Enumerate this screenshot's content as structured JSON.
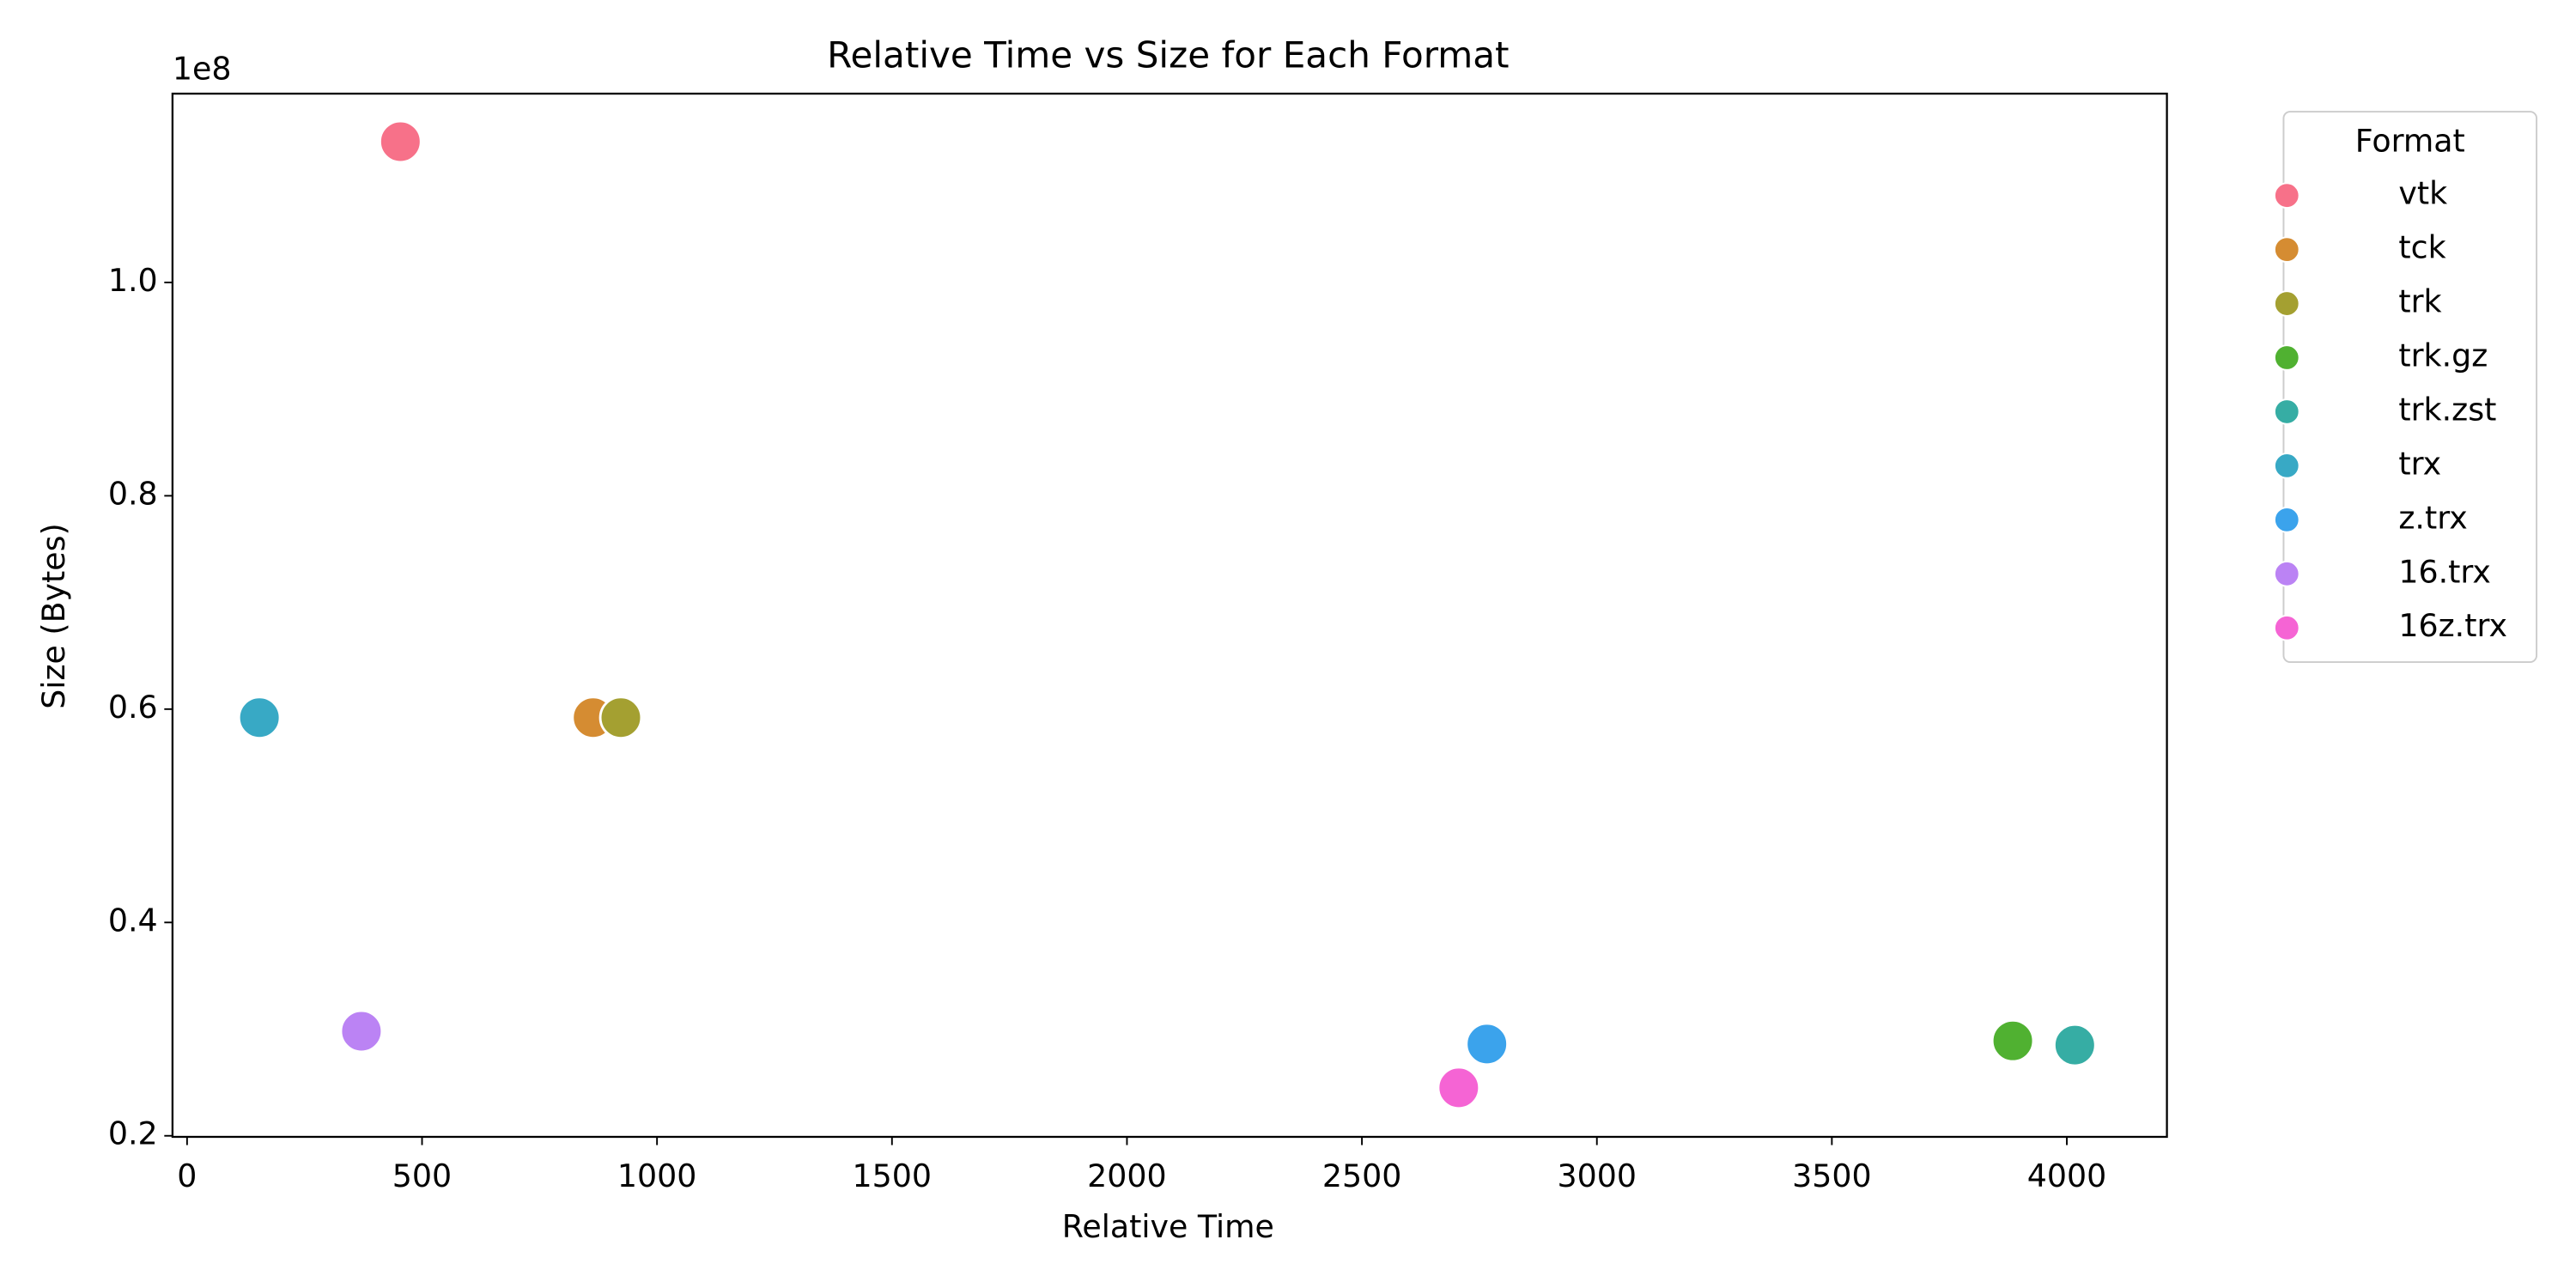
{
  "chart_data": {
    "type": "scatter",
    "title": "Relative Time vs Size for Each Format",
    "x_label": "Relative Time",
    "y_label": "Size (Bytes)",
    "y_offset_label": "1e8",
    "legend_title": "Format",
    "legend": "outside-upper-right",
    "grid": false,
    "xlim": [
      -31,
      4213
    ],
    "xticks": [
      0,
      500,
      1000,
      1500,
      2000,
      2500,
      3000,
      3500,
      4000
    ],
    "ylim": [
      0.199,
      1.177
    ],
    "yticks": [
      0.2,
      0.4,
      0.6,
      {
        "value": 1,
        "label": "1.0"
      },
      0.8
    ],
    "series": [
      {
        "name": "vtk",
        "color": "#f77189",
        "x": [
          454
        ],
        "values": [
          1.132
        ]
      },
      {
        "name": "tck",
        "color": "#d58c32",
        "x": [
          864
        ],
        "values": [
          0.592
        ]
      },
      {
        "name": "trk",
        "color": "#a4a031",
        "x": [
          923
        ],
        "values": [
          0.592
        ]
      },
      {
        "name": "trk.gz",
        "color": "#50b131",
        "x": [
          3885
        ],
        "values": [
          0.289
        ]
      },
      {
        "name": "trk.zst",
        "color": "#36ada4",
        "x": [
          4017
        ],
        "values": [
          0.285
        ]
      },
      {
        "name": "trx",
        "color": "#38a9c5",
        "x": [
          154
        ],
        "values": [
          0.592
        ]
      },
      {
        "name": "z.trx",
        "color": "#3ba3ec",
        "x": [
          2766
        ],
        "values": [
          0.286
        ]
      },
      {
        "name": "16.trx",
        "color": "#bb83f4",
        "x": [
          371
        ],
        "values": [
          0.298
        ]
      },
      {
        "name": "16z.trx",
        "color": "#f564d4",
        "x": [
          2706
        ],
        "values": [
          0.245
        ]
      }
    ]
  }
}
